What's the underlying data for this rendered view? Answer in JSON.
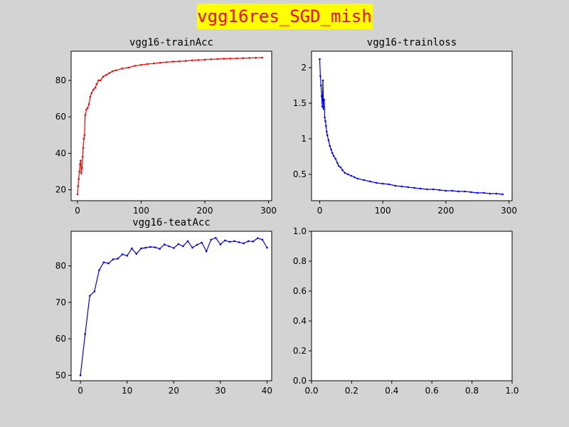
{
  "figure": {
    "title": "vgg16res_SGD_mish",
    "title_color": "#ff0000",
    "title_bg": "#ffff00",
    "background": "#d3d3d3"
  },
  "chart_data": [
    {
      "id": "trainAcc",
      "type": "line",
      "title": "vgg16-trainAcc",
      "color": "#ff0000",
      "marker": "dot",
      "xlim": [
        -10,
        305
      ],
      "ylim": [
        14,
        96
      ],
      "xticks": [
        0,
        100,
        200,
        300
      ],
      "yticks": [
        20,
        40,
        60,
        80
      ],
      "series": [
        {
          "x": [
            0,
            1,
            2,
            3,
            4,
            5,
            6,
            7,
            8,
            9,
            10,
            11,
            12,
            14,
            16,
            18,
            20,
            22,
            25,
            28,
            30,
            33,
            36,
            40,
            45,
            50,
            55,
            60,
            70,
            80,
            90,
            100,
            110,
            120,
            130,
            140,
            150,
            160,
            170,
            180,
            190,
            200,
            210,
            220,
            230,
            240,
            250,
            260,
            270,
            280,
            290
          ],
          "y": [
            17.5,
            22,
            26,
            30,
            34,
            36,
            29,
            32,
            38,
            43,
            48,
            50,
            61,
            64,
            65,
            67,
            71,
            73,
            75,
            76,
            78,
            80,
            80,
            82,
            83,
            84,
            85,
            85.5,
            86.5,
            87,
            88,
            88.5,
            89,
            89.3,
            89.7,
            90,
            90.3,
            90.5,
            90.7,
            91,
            91.2,
            91.4,
            91.6,
            91.7,
            91.9,
            92,
            92.1,
            92.2,
            92.3,
            92.4,
            92.5
          ]
        }
      ]
    },
    {
      "id": "trainloss",
      "type": "line",
      "title": "vgg16-trainloss",
      "color": "#0000ff",
      "marker": "dot",
      "xlim": [
        -13,
        305
      ],
      "ylim": [
        0.13,
        2.23
      ],
      "xticks": [
        0,
        100,
        200,
        300
      ],
      "yticks": [
        0.5,
        1.0,
        1.5,
        2.0
      ],
      "series": [
        {
          "x": [
            0,
            1,
            2,
            3,
            4,
            5,
            6,
            7,
            8,
            9,
            10,
            11,
            12,
            14,
            16,
            18,
            20,
            22,
            25,
            28,
            30,
            33,
            36,
            40,
            45,
            50,
            55,
            60,
            70,
            80,
            90,
            100,
            110,
            120,
            130,
            140,
            150,
            160,
            170,
            180,
            190,
            200,
            210,
            220,
            230,
            240,
            250,
            260,
            270,
            280,
            290
          ],
          "y": [
            2.12,
            1.88,
            1.75,
            1.6,
            1.45,
            1.82,
            1.42,
            1.55,
            1.3,
            1.25,
            1.18,
            1.1,
            1.05,
            0.98,
            0.9,
            0.85,
            0.8,
            0.76,
            0.72,
            0.66,
            0.62,
            0.6,
            0.56,
            0.52,
            0.5,
            0.48,
            0.46,
            0.44,
            0.42,
            0.4,
            0.38,
            0.37,
            0.36,
            0.34,
            0.33,
            0.32,
            0.31,
            0.3,
            0.29,
            0.29,
            0.28,
            0.27,
            0.27,
            0.26,
            0.26,
            0.25,
            0.24,
            0.24,
            0.23,
            0.23,
            0.22
          ]
        }
      ]
    },
    {
      "id": "teatAcc",
      "type": "line",
      "title": "vgg16-teatAcc",
      "color": "#0000ff",
      "marker": "dot",
      "xlim": [
        -2,
        41
      ],
      "ylim": [
        48.5,
        89.5
      ],
      "xticks": [
        0,
        10,
        20,
        30,
        40
      ],
      "yticks": [
        50,
        60,
        70,
        80
      ],
      "series": [
        {
          "x": [
            0,
            1,
            2,
            3,
            4,
            5,
            6,
            7,
            8,
            9,
            10,
            11,
            12,
            13,
            14,
            15,
            16,
            17,
            18,
            19,
            20,
            21,
            22,
            23,
            24,
            25,
            26,
            27,
            28,
            29,
            30,
            31,
            32,
            33,
            34,
            35,
            36,
            37,
            38,
            39,
            40
          ],
          "y": [
            50,
            61.3,
            71.8,
            73,
            78.8,
            81,
            80.7,
            81.8,
            82,
            83.2,
            82.8,
            84.8,
            83.3,
            84.8,
            85,
            85.2,
            85.1,
            84.7,
            85.9,
            85.4,
            84.9,
            86,
            85.4,
            86.8,
            85,
            85.8,
            86.4,
            84,
            87.2,
            87.7,
            85.9,
            87,
            86.6,
            86.8,
            86.5,
            86.2,
            86.8,
            86.7,
            87.6,
            87.2,
            85
          ]
        }
      ]
    },
    {
      "id": "empty",
      "type": "line",
      "title": "",
      "xlim": [
        0,
        1
      ],
      "ylim": [
        0,
        1
      ],
      "xticks": [
        "0.0",
        "0.2",
        "0.4",
        "0.6",
        "0.8",
        "1.0"
      ],
      "yticks": [
        "0.0",
        "0.2",
        "0.4",
        "0.6",
        "0.8",
        "1.0"
      ],
      "series": []
    }
  ]
}
